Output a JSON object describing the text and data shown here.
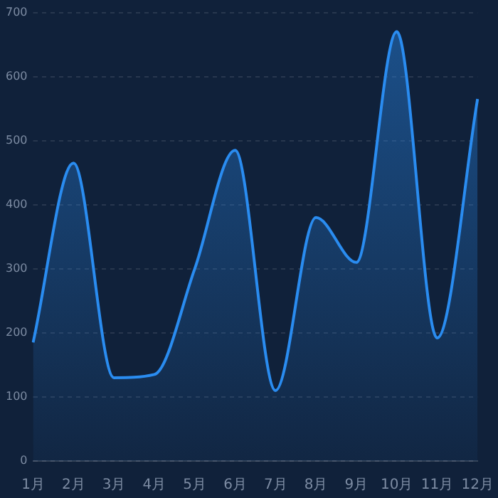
{
  "chart_data": {
    "type": "area",
    "categories": [
      "1月",
      "2月",
      "3月",
      "4月",
      "5月",
      "6月",
      "7月",
      "8月",
      "9月",
      "10月",
      "11月",
      "12月"
    ],
    "series": [
      {
        "color": "#2a8cf0",
        "values": [
          185,
          465,
          130,
          135,
          300,
          485,
          110,
          380,
          310,
          670,
          192,
          565
        ]
      }
    ],
    "ylim": [
      0,
      700
    ],
    "yticks": [
      0,
      100,
      200,
      300,
      400,
      500,
      600,
      700
    ],
    "grid": "y",
    "legend": false,
    "marker": "none",
    "line_style": "solid"
  }
}
